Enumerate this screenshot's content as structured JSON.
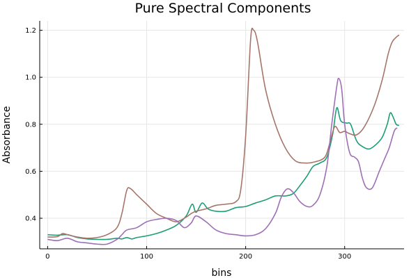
{
  "chart_data": {
    "type": "line",
    "title": "Pure Spectral Components",
    "xlabel": "bins",
    "ylabel": "Absorbance",
    "xlim": [
      -8,
      360
    ],
    "ylim": [
      0.27,
      1.24
    ],
    "xticks": [
      0,
      100,
      200,
      300
    ],
    "yticks": [
      0.4,
      0.6,
      0.8,
      1.0,
      1.2
    ],
    "ytick_labels": [
      "0.4",
      "0.6",
      "0.8",
      "1.0",
      "1.2"
    ],
    "grid": true,
    "legend": "none",
    "series": [
      {
        "color": "#1b9e77",
        "points": [
          [
            0,
            0.33
          ],
          [
            10,
            0.328
          ],
          [
            20,
            0.33
          ],
          [
            30,
            0.318
          ],
          [
            40,
            0.312
          ],
          [
            50,
            0.31
          ],
          [
            60,
            0.31
          ],
          [
            70,
            0.315
          ],
          [
            75,
            0.312
          ],
          [
            80,
            0.318
          ],
          [
            85,
            0.312
          ],
          [
            90,
            0.318
          ],
          [
            100,
            0.325
          ],
          [
            110,
            0.335
          ],
          [
            120,
            0.35
          ],
          [
            130,
            0.37
          ],
          [
            140,
            0.41
          ],
          [
            146,
            0.46
          ],
          [
            150,
            0.425
          ],
          [
            156,
            0.465
          ],
          [
            162,
            0.44
          ],
          [
            170,
            0.43
          ],
          [
            180,
            0.43
          ],
          [
            190,
            0.445
          ],
          [
            200,
            0.45
          ],
          [
            210,
            0.465
          ],
          [
            220,
            0.478
          ],
          [
            230,
            0.495
          ],
          [
            240,
            0.495
          ],
          [
            248,
            0.505
          ],
          [
            255,
            0.54
          ],
          [
            262,
            0.58
          ],
          [
            268,
            0.62
          ],
          [
            275,
            0.635
          ],
          [
            282,
            0.66
          ],
          [
            288,
            0.76
          ],
          [
            292,
            0.87
          ],
          [
            296,
            0.815
          ],
          [
            302,
            0.805
          ],
          [
            306,
            0.8
          ],
          [
            312,
            0.73
          ],
          [
            318,
            0.705
          ],
          [
            325,
            0.695
          ],
          [
            332,
            0.715
          ],
          [
            338,
            0.745
          ],
          [
            343,
            0.8
          ],
          [
            346,
            0.848
          ],
          [
            349,
            0.83
          ],
          [
            352,
            0.8
          ],
          [
            355,
            0.795
          ]
        ]
      },
      {
        "color": "#a6756a",
        "points": [
          [
            0,
            0.32
          ],
          [
            10,
            0.322
          ],
          [
            15,
            0.335
          ],
          [
            20,
            0.33
          ],
          [
            30,
            0.32
          ],
          [
            40,
            0.315
          ],
          [
            50,
            0.318
          ],
          [
            60,
            0.33
          ],
          [
            70,
            0.36
          ],
          [
            75,
            0.42
          ],
          [
            80,
            0.52
          ],
          [
            84,
            0.525
          ],
          [
            90,
            0.5
          ],
          [
            100,
            0.46
          ],
          [
            110,
            0.42
          ],
          [
            120,
            0.4
          ],
          [
            130,
            0.385
          ],
          [
            140,
            0.405
          ],
          [
            145,
            0.42
          ],
          [
            150,
            0.43
          ],
          [
            160,
            0.44
          ],
          [
            170,
            0.455
          ],
          [
            180,
            0.46
          ],
          [
            190,
            0.47
          ],
          [
            195,
            0.52
          ],
          [
            200,
            0.75
          ],
          [
            205,
            1.16
          ],
          [
            208,
            1.2
          ],
          [
            212,
            1.15
          ],
          [
            220,
            0.95
          ],
          [
            230,
            0.8
          ],
          [
            240,
            0.7
          ],
          [
            250,
            0.645
          ],
          [
            260,
            0.635
          ],
          [
            270,
            0.64
          ],
          [
            280,
            0.66
          ],
          [
            285,
            0.72
          ],
          [
            290,
            0.79
          ],
          [
            295,
            0.765
          ],
          [
            300,
            0.77
          ],
          [
            305,
            0.76
          ],
          [
            312,
            0.755
          ],
          [
            320,
            0.79
          ],
          [
            330,
            0.88
          ],
          [
            338,
            0.99
          ],
          [
            344,
            1.1
          ],
          [
            348,
            1.15
          ],
          [
            352,
            1.17
          ],
          [
            355,
            1.18
          ]
        ]
      },
      {
        "color": "#9e6fb5",
        "points": [
          [
            0,
            0.31
          ],
          [
            10,
            0.305
          ],
          [
            20,
            0.315
          ],
          [
            30,
            0.3
          ],
          [
            40,
            0.295
          ],
          [
            50,
            0.29
          ],
          [
            60,
            0.29
          ],
          [
            70,
            0.31
          ],
          [
            75,
            0.33
          ],
          [
            80,
            0.35
          ],
          [
            90,
            0.36
          ],
          [
            100,
            0.385
          ],
          [
            110,
            0.395
          ],
          [
            120,
            0.4
          ],
          [
            130,
            0.39
          ],
          [
            138,
            0.36
          ],
          [
            145,
            0.38
          ],
          [
            150,
            0.41
          ],
          [
            160,
            0.385
          ],
          [
            170,
            0.35
          ],
          [
            180,
            0.335
          ],
          [
            190,
            0.33
          ],
          [
            200,
            0.325
          ],
          [
            210,
            0.33
          ],
          [
            220,
            0.355
          ],
          [
            230,
            0.42
          ],
          [
            236,
            0.49
          ],
          [
            242,
            0.525
          ],
          [
            248,
            0.51
          ],
          [
            255,
            0.47
          ],
          [
            262,
            0.45
          ],
          [
            268,
            0.455
          ],
          [
            275,
            0.5
          ],
          [
            282,
            0.62
          ],
          [
            287,
            0.8
          ],
          [
            292,
            0.96
          ],
          [
            294,
            0.995
          ],
          [
            297,
            0.95
          ],
          [
            300,
            0.8
          ],
          [
            305,
            0.68
          ],
          [
            310,
            0.66
          ],
          [
            314,
            0.64
          ],
          [
            318,
            0.57
          ],
          [
            322,
            0.53
          ],
          [
            328,
            0.53
          ],
          [
            335,
            0.6
          ],
          [
            340,
            0.65
          ],
          [
            345,
            0.7
          ],
          [
            350,
            0.77
          ],
          [
            353,
            0.785
          ]
        ]
      }
    ]
  }
}
